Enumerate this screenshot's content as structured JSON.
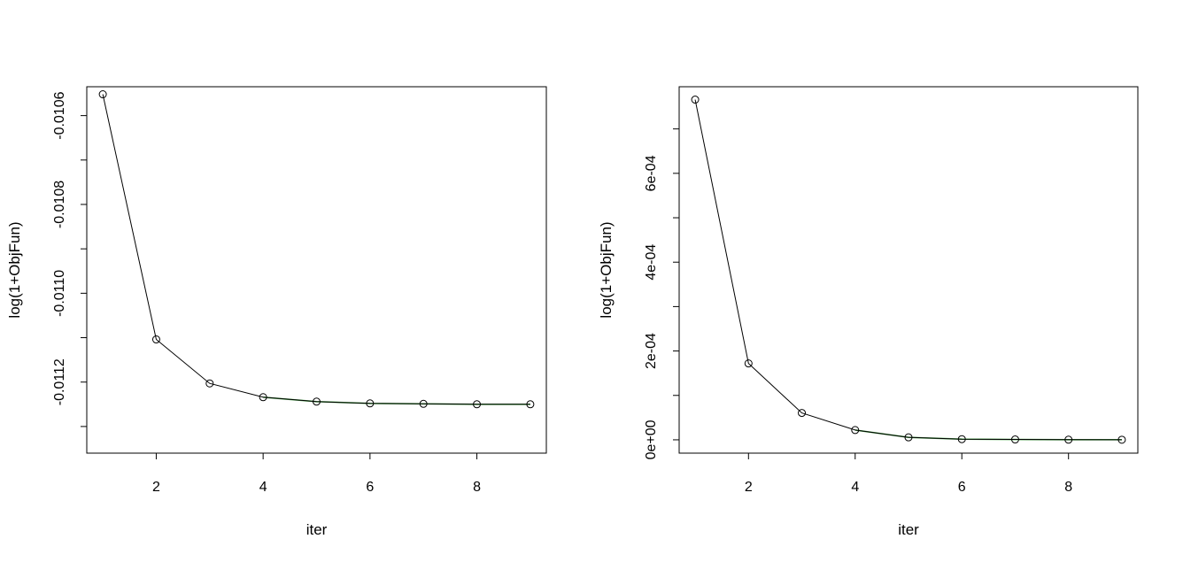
{
  "chart_data": [
    {
      "type": "line",
      "title": "",
      "xlabel": "iter",
      "ylabel": "log(1+ObjFun)",
      "xlim": [
        0.7,
        9.3
      ],
      "ylim": [
        -0.01136,
        -0.010535
      ],
      "x_ticks": [
        2,
        4,
        6,
        8
      ],
      "x_tick_labels": [
        "2",
        "4",
        "6",
        "8"
      ],
      "y_ticks": [
        -0.0106,
        -0.0108,
        -0.011,
        -0.0112
      ],
      "y_tick_labels": [
        "-0.0106",
        "-0.0108",
        "-0.0110",
        "-0.0112"
      ],
      "y_minor_ticks": [
        -0.0107,
        -0.0109,
        -0.0111,
        -0.0113
      ],
      "grid": false,
      "marker": "open-circle",
      "line_color": "#000000",
      "accent_color": "#008000",
      "series": [
        {
          "x": [
            1,
            2,
            3,
            4,
            5,
            6,
            7,
            8,
            9
          ],
          "values": [
            -0.010552,
            -0.011104,
            -0.011203,
            -0.011234,
            -0.011244,
            -0.011248,
            -0.011249,
            -0.01125,
            -0.01125
          ]
        }
      ]
    },
    {
      "type": "line",
      "title": "",
      "xlabel": "iter",
      "ylabel": "log(1+ObjFun)",
      "xlim": [
        0.7,
        9.3
      ],
      "ylim": [
        -3e-05,
        0.000795
      ],
      "x_ticks": [
        2,
        4,
        6,
        8
      ],
      "x_tick_labels": [
        "2",
        "4",
        "6",
        "8"
      ],
      "y_ticks": [
        0,
        0.0002,
        0.0004,
        0.0006
      ],
      "y_tick_labels": [
        "0e+00",
        "2e-04",
        "4e-04",
        "6e-04"
      ],
      "y_minor_ticks": [
        0.0001,
        0.0003,
        0.0005,
        0.0007
      ],
      "grid": false,
      "marker": "open-circle",
      "line_color": "#000000",
      "accent_color": "#008000",
      "series": [
        {
          "x": [
            1,
            2,
            3,
            4,
            5,
            6,
            7,
            8,
            9
          ],
          "values": [
            0.000766,
            0.000172,
            6.05e-05,
            2.2e-05,
            5.5e-06,
            1.5e-06,
            8e-07,
            3e-07,
            2e-07
          ]
        }
      ]
    }
  ]
}
